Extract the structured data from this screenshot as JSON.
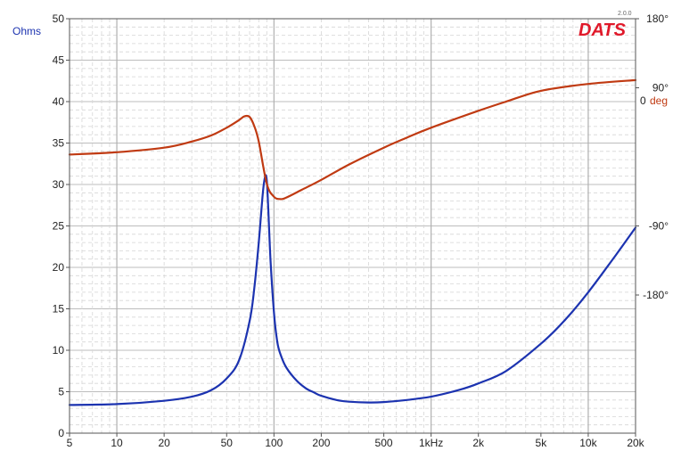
{
  "chart_data": {
    "type": "line",
    "x_scale": "log",
    "xlim": [
      5,
      20000
    ],
    "ylim": [
      0,
      50
    ],
    "phase_lim": [
      -360,
      180
    ],
    "grid": true,
    "ylabel": "Ohms",
    "phase_unit_value": "0",
    "phase_unit_label": "deg",
    "logo": "DATS",
    "version": "2.0.0",
    "x_ticks": [
      {
        "value": 5,
        "label": "5"
      },
      {
        "value": 10,
        "label": "10"
      },
      {
        "value": 20,
        "label": "20"
      },
      {
        "value": 50,
        "label": "50"
      },
      {
        "value": 100,
        "label": "100"
      },
      {
        "value": 200,
        "label": "200"
      },
      {
        "value": 500,
        "label": "500"
      },
      {
        "value": 1000,
        "label": "1kHz"
      },
      {
        "value": 2000,
        "label": "2k"
      },
      {
        "value": 5000,
        "label": "5k"
      },
      {
        "value": 10000,
        "label": "10k"
      },
      {
        "value": 20000,
        "label": "20k"
      }
    ],
    "y_ticks": [
      0,
      5,
      10,
      15,
      20,
      25,
      30,
      35,
      40,
      45,
      50
    ],
    "phase_ticks": [
      {
        "value": 180,
        "label": "180°"
      },
      {
        "value": 90,
        "label": "90°"
      },
      {
        "value": -90,
        "label": "-90°"
      },
      {
        "value": -180,
        "label": "-180°"
      }
    ],
    "series": [
      {
        "color": "#1c33b0",
        "axis": "ohms",
        "x": [
          5,
          10,
          20,
          30,
          40,
          50,
          60,
          70,
          75,
          80,
          85,
          88,
          90,
          92,
          95,
          100,
          105,
          110,
          120,
          140,
          160,
          180,
          200,
          250,
          300,
          400,
          500,
          700,
          1000,
          1500,
          2000,
          3000,
          5000,
          7000,
          10000,
          15000,
          20000
        ],
        "values": [
          3.4,
          3.5,
          3.9,
          4.4,
          5.2,
          6.6,
          8.8,
          13.5,
          17.5,
          23.0,
          29.0,
          31.0,
          30.5,
          27.0,
          21.0,
          14.5,
          11.0,
          9.5,
          7.9,
          6.3,
          5.4,
          4.9,
          4.5,
          4.0,
          3.8,
          3.7,
          3.75,
          4.0,
          4.4,
          5.2,
          6.0,
          7.5,
          10.8,
          13.5,
          17.0,
          21.5,
          24.8
        ]
      },
      {
        "color": "#c03a12",
        "axis": "phase",
        "x": [
          5,
          10,
          20,
          30,
          40,
          50,
          60,
          65,
          70,
          75,
          80,
          90,
          100,
          110,
          120,
          150,
          200,
          300,
          500,
          700,
          1000,
          2000,
          3000,
          5000,
          10000,
          20000
        ],
        "values": [
          3,
          6,
          12,
          20,
          28,
          38,
          48,
          53,
          52,
          40,
          20,
          -35,
          -52,
          -55,
          -53,
          -43,
          -30,
          -10,
          12,
          25,
          38,
          60,
          72,
          86,
          95,
          100
        ]
      }
    ]
  }
}
